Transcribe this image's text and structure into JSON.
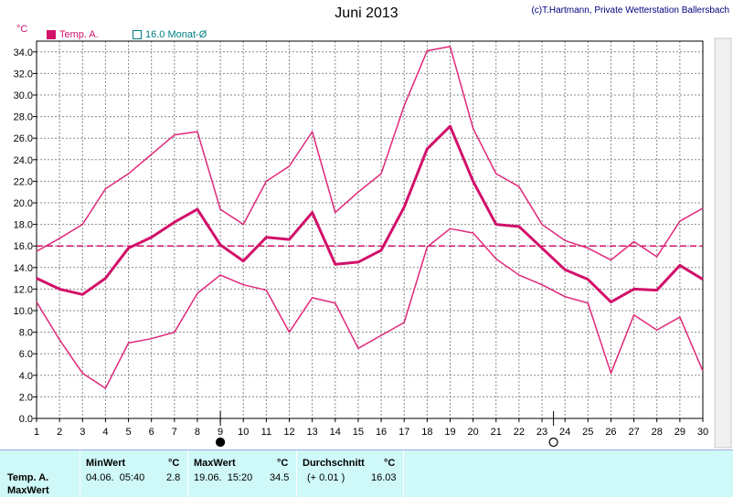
{
  "title": "Juni 2013",
  "copyright": "(c)T.Hartmann, Private Wetterstation Ballersbach",
  "unit": "°C",
  "legend": [
    {
      "label": "Temp. A.",
      "color": "#d2106a",
      "style": "filled-square"
    },
    {
      "label": "16.0 Monat-Ø",
      "color": "#008080",
      "style": "open-square"
    }
  ],
  "chart_data": {
    "type": "line",
    "title": "Juni 2013",
    "ylabel": "°C",
    "ylim": [
      0,
      35
    ],
    "xlim": [
      1,
      30
    ],
    "grid": true,
    "x": [
      1,
      2,
      3,
      4,
      5,
      6,
      7,
      8,
      9,
      10,
      11,
      12,
      13,
      14,
      15,
      16,
      17,
      18,
      19,
      20,
      21,
      22,
      23,
      24,
      25,
      26,
      27,
      28,
      29,
      30
    ],
    "x_ticks": [
      "1",
      "2",
      "3",
      "4",
      "5",
      "6",
      "7",
      "8",
      "9",
      "10",
      "11",
      "12",
      "13",
      "14",
      "15",
      "16",
      "17",
      "18",
      "19",
      "20",
      "21",
      "22",
      "23",
      "24",
      "25",
      "26",
      "27",
      "28",
      "29",
      "30"
    ],
    "y_ticks": [
      "0.0",
      "2.0",
      "4.0",
      "6.0",
      "8.0",
      "10.0",
      "12.0",
      "14.0",
      "16.0",
      "18.0",
      "20.0",
      "22.0",
      "24.0",
      "26.0",
      "28.0",
      "30.0",
      "32.0",
      "34.0"
    ],
    "series": [
      {
        "name": "max",
        "color": "#e0287a",
        "width": 1.5,
        "values": [
          15.5,
          16.7,
          18.0,
          21.3,
          22.7,
          24.5,
          26.3,
          26.6,
          19.4,
          18.0,
          22.0,
          23.4,
          26.6,
          19.1,
          21.0,
          22.7,
          29.0,
          34.1,
          34.5,
          26.9,
          22.7,
          21.5,
          18.0,
          16.5,
          15.8,
          14.7,
          16.4,
          15.0,
          18.3,
          19.5
        ]
      },
      {
        "name": "avg",
        "color": "#d2106a",
        "width": 3,
        "values": [
          13.0,
          12.0,
          11.5,
          13.0,
          15.8,
          16.8,
          18.2,
          19.4,
          16.1,
          14.6,
          16.8,
          16.6,
          19.1,
          14.3,
          14.5,
          15.6,
          19.6,
          25.0,
          27.1,
          22.0,
          18.0,
          17.8,
          15.8,
          13.8,
          12.9,
          10.8,
          12.0,
          11.9,
          14.2,
          12.9
        ]
      },
      {
        "name": "min",
        "color": "#e0287a",
        "width": 1.5,
        "values": [
          10.8,
          7.3,
          4.2,
          2.8,
          7.0,
          7.4,
          8.0,
          11.6,
          13.3,
          12.4,
          11.9,
          8.0,
          11.2,
          10.7,
          6.5,
          7.7,
          8.9,
          15.9,
          17.6,
          17.2,
          14.8,
          13.3,
          12.4,
          11.3,
          10.7,
          4.2,
          9.6,
          8.2,
          9.4,
          4.4
        ]
      }
    ],
    "reference_line": {
      "label": "16.0 Monat-Ø",
      "value": 16.0,
      "color": "#d2106a",
      "dashed": true
    },
    "moon_phases": [
      {
        "x": 9,
        "phase": "new"
      },
      {
        "x": 23.5,
        "phase": "full"
      }
    ]
  },
  "stats": {
    "row_labels": [
      "Temp. A.",
      "MaxWert"
    ],
    "columns": [
      {
        "header": "MinWert",
        "unit": "°C",
        "date": "04.06.  05:40",
        "value": "2.8"
      },
      {
        "header": "MaxWert",
        "unit": "°C",
        "date": "19.06.  15:20",
        "value": "34.5"
      },
      {
        "header": "Durchschnitt",
        "unit": "°C",
        "date": "(+ 0.01 )",
        "value": "16.03"
      }
    ]
  }
}
